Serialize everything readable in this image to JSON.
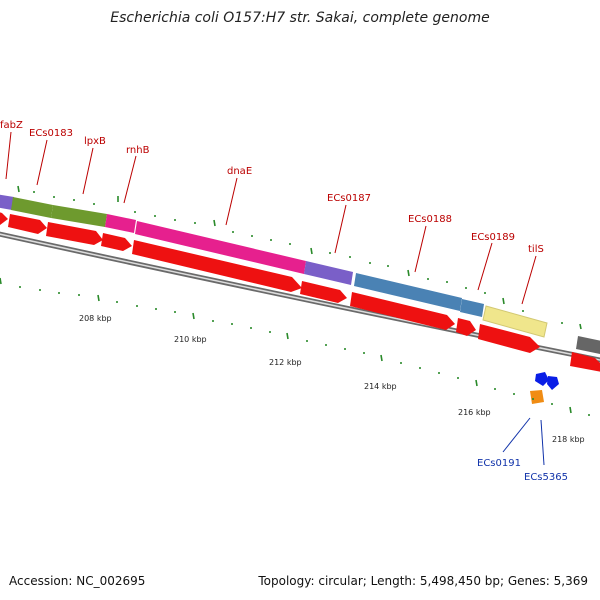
{
  "title": "Escherichia coli O157:H7 str. Sakai, complete genome",
  "footer": {
    "accession": "Accession: NC_002695",
    "topology": "Topology: circular; Length: 5,498,450 bp; Genes: 5,369"
  },
  "colors": {
    "forward_cds": "#ee1111",
    "backbone": "#888888",
    "gene_label": "#bb0000",
    "small_feature_label": "#1133aa",
    "tick": "#2a8a2a"
  },
  "gene_labels": [
    "fabZ",
    "ECs0183",
    "lpxB",
    "rnhB",
    "dnaE",
    "ECs0187",
    "ECs0188",
    "ECs0189",
    "tilS"
  ],
  "small_feature_labels": [
    "ECs0191",
    "ECs5365"
  ],
  "scale_labels": [
    "208 kbp",
    "210 kbp",
    "212 kbp",
    "214 kbp",
    "216 kbp",
    "218 kbp"
  ],
  "feature_colors": {
    "purple": "#7a5fc8",
    "olive": "#6e9a2e",
    "magenta": "#e6208e",
    "steelblue": "#4a82b4",
    "khaki": "#f0e68c",
    "gray": "#666666",
    "blue": "#0a1ee6",
    "orange": "#f08c14"
  }
}
